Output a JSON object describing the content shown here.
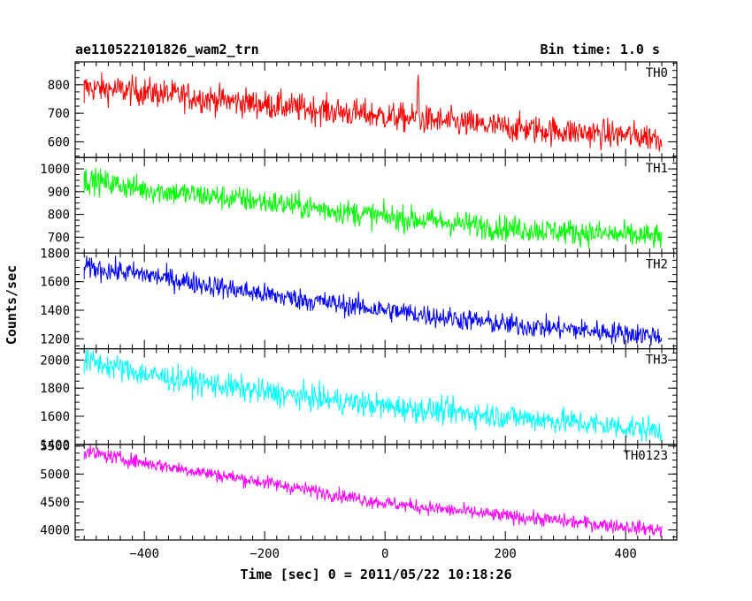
{
  "header": {
    "title": "ae110522101826_wam2_trn",
    "bin_time": "Bin time: 1.0 s"
  },
  "axes": {
    "xlabel": "Time [sec] 0 = 2011/05/22 10:18:26",
    "ylabel": "Counts/sec"
  },
  "chart_data": {
    "type": "line",
    "title": "ae110522101826_wam2_trn",
    "subtitle": "Bin time: 1.0 s",
    "xlabel": "Time [sec] 0 = 2011/05/22 10:18:26",
    "ylabel": "Counts/sec",
    "xlim": [
      -515,
      485
    ],
    "xticks": [
      -400,
      -200,
      0,
      200,
      400
    ],
    "x_start": -500,
    "x_end": 460,
    "panels": [
      {
        "name": "TH0",
        "color": "#ff0000",
        "ylim": [
          545,
          880
        ],
        "yticks": [
          600,
          700,
          800
        ],
        "trend": [
          [
            -500,
            790
          ],
          [
            -400,
            775
          ],
          [
            -200,
            730
          ],
          [
            0,
            690
          ],
          [
            200,
            650
          ],
          [
            460,
            615
          ]
        ],
        "noise": 36,
        "spike": {
          "x": 55,
          "y": 835
        }
      },
      {
        "name": "TH1",
        "color": "#00ff00",
        "ylim": [
          630,
          1050
        ],
        "yticks": [
          700,
          800,
          900,
          1000
        ],
        "trend": [
          [
            -500,
            955
          ],
          [
            -400,
            910
          ],
          [
            -200,
            855
          ],
          [
            0,
            790
          ],
          [
            200,
            740
          ],
          [
            460,
            700
          ]
        ],
        "noise": 40
      },
      {
        "name": "TH2",
        "color": "#0000ff",
        "ylim": [
          1130,
          1800
        ],
        "yticks": [
          1200,
          1400,
          1600,
          1800
        ],
        "trend": [
          [
            -500,
            1700
          ],
          [
            -400,
            1650
          ],
          [
            -200,
            1510
          ],
          [
            0,
            1400
          ],
          [
            200,
            1300
          ],
          [
            460,
            1220
          ]
        ],
        "noise": 55
      },
      {
        "name": "TH3",
        "color": "#00ffff",
        "ylim": [
          1400,
          2080
        ],
        "yticks": [
          1400,
          1600,
          1800,
          2000
        ],
        "trend": [
          [
            -500,
            2000
          ],
          [
            -400,
            1900
          ],
          [
            -200,
            1770
          ],
          [
            0,
            1670
          ],
          [
            200,
            1600
          ],
          [
            460,
            1500
          ]
        ],
        "noise": 65
      },
      {
        "name": "TH0123",
        "color": "#ff00ff",
        "ylim": [
          3820,
          5530
        ],
        "yticks": [
          4000,
          4500,
          5000,
          5500
        ],
        "trend": [
          [
            -500,
            5400
          ],
          [
            -400,
            5200
          ],
          [
            -200,
            4850
          ],
          [
            0,
            4480
          ],
          [
            200,
            4250
          ],
          [
            460,
            4000
          ]
        ],
        "noise": 90
      }
    ]
  }
}
